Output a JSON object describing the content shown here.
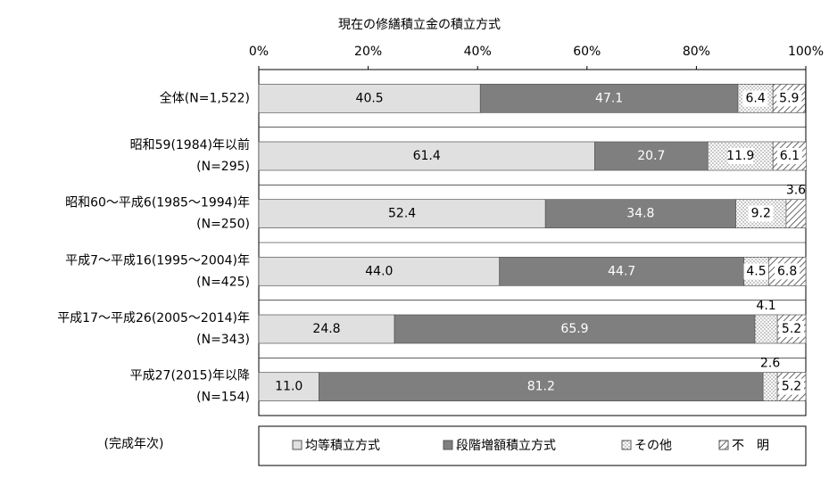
{
  "chart_data": {
    "type": "stacked-barh",
    "title": "現在の修繕積立金の積立方式",
    "categories": [
      [
        "全体(N=1,522)"
      ],
      [
        "昭和59(1984)年以前",
        "(N=295)"
      ],
      [
        "昭和60～平成6(1985～1994)年",
        "(N=250)"
      ],
      [
        "平成7～平成16(1995～2004)年",
        "(N=425)"
      ],
      [
        "平成17～平成26(2005～2014)年",
        "(N=343)"
      ],
      [
        "平成27(2015)年以降",
        "(N=154)"
      ]
    ],
    "series": [
      {
        "name": "均等積立方式",
        "color": "#e0e0e0",
        "values": [
          40.5,
          61.4,
          52.4,
          44,
          24.8,
          11
        ],
        "value_labels": [
          "40.5",
          "61.4",
          "52.4",
          "44.0",
          "24.8",
          "11.0"
        ]
      },
      {
        "name": "段階増額積立方式",
        "color": "#7f7f7f",
        "values": [
          47.1,
          20.7,
          34.8,
          44.7,
          65.9,
          81.2
        ],
        "value_labels": [
          "47.1",
          "20.7",
          "34.8",
          "44.7",
          "65.9",
          "81.2"
        ]
      },
      {
        "name": "その他",
        "color": "#ffffff",
        "values": [
          6.4,
          11.9,
          9.2,
          4.5,
          4.1,
          2.6
        ],
        "value_labels": [
          "6.4",
          "11.9",
          "9.2",
          "4.5",
          "4.1",
          "2.6"
        ]
      },
      {
        "name": "不　明",
        "color": "#ffffff",
        "values": [
          5.9,
          6.1,
          3.6,
          6.8,
          5.2,
          5.2
        ],
        "value_labels": [
          "5.9",
          "6.1",
          "3.6",
          "6.8",
          "5.2",
          "5.2"
        ]
      }
    ],
    "xlim": [
      0,
      100
    ],
    "xticks": [
      {
        "value": 0,
        "label": "0%"
      },
      {
        "value": 20,
        "label": "20%"
      },
      {
        "value": 40,
        "label": "40%"
      },
      {
        "value": 60,
        "label": "60%"
      },
      {
        "value": 80,
        "label": "80%"
      },
      {
        "value": 100,
        "label": "100%"
      }
    ],
    "y_axis_label": "(完成年次)",
    "legend": "bottom"
  }
}
